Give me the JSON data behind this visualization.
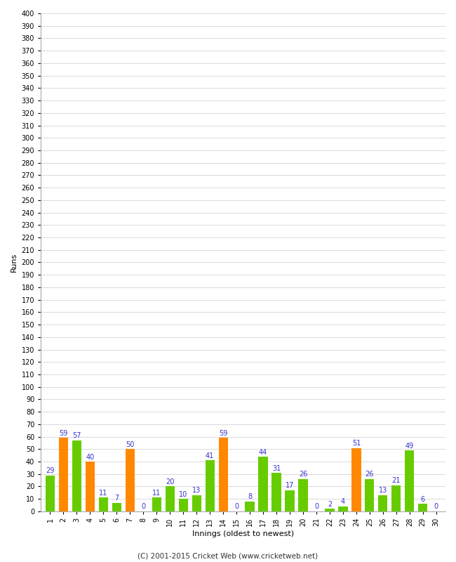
{
  "xlabel": "Innings (oldest to newest)",
  "ylabel": "Runs",
  "footer": "(C) 2001-2015 Cricket Web (www.cricketweb.net)",
  "innings": [
    1,
    2,
    3,
    4,
    5,
    6,
    7,
    8,
    9,
    10,
    11,
    12,
    13,
    14,
    15,
    16,
    17,
    18,
    19,
    20,
    21,
    22,
    23,
    24,
    25,
    26,
    27,
    28,
    29,
    30
  ],
  "values": [
    29,
    59,
    57,
    40,
    11,
    7,
    50,
    0,
    11,
    20,
    10,
    13,
    41,
    59,
    0,
    8,
    44,
    31,
    17,
    26,
    0,
    2,
    4,
    51,
    26,
    13,
    21,
    49,
    6,
    0
  ],
  "colors": [
    "#66cc00",
    "#ff8800",
    "#66cc00",
    "#ff8800",
    "#66cc00",
    "#66cc00",
    "#ff8800",
    "#66cc00",
    "#66cc00",
    "#66cc00",
    "#66cc00",
    "#66cc00",
    "#66cc00",
    "#ff8800",
    "#66cc00",
    "#66cc00",
    "#66cc00",
    "#66cc00",
    "#66cc00",
    "#66cc00",
    "#66cc00",
    "#66cc00",
    "#66cc00",
    "#ff8800",
    "#66cc00",
    "#66cc00",
    "#66cc00",
    "#66cc00",
    "#66cc00",
    "#66cc00"
  ],
  "ylim": [
    0,
    400
  ],
  "yticks": [
    0,
    10,
    20,
    30,
    40,
    50,
    60,
    70,
    80,
    90,
    100,
    110,
    120,
    130,
    140,
    150,
    160,
    170,
    180,
    190,
    200,
    210,
    220,
    230,
    240,
    250,
    260,
    270,
    280,
    290,
    300,
    310,
    320,
    330,
    340,
    350,
    360,
    370,
    380,
    390,
    400
  ],
  "background_color": "#ffffff",
  "grid_color": "#cccccc",
  "label_color": "#3333cc",
  "axis_fontsize": 8,
  "tick_fontsize": 7,
  "value_fontsize": 7,
  "bar_width": 0.7
}
